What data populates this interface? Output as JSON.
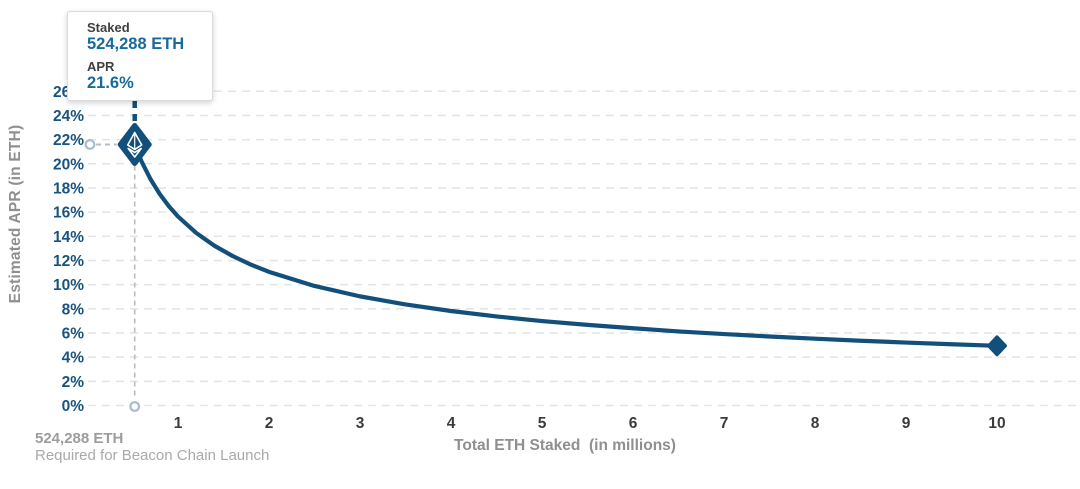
{
  "tooltip": {
    "staked_label": "Staked",
    "staked_value": "524,288 ETH",
    "apr_label": "APR",
    "apr_value": "21.6%"
  },
  "axes": {
    "y_title": "Estimated APR (in ETH)",
    "x_title": "Total ETH Staked  (in millions)"
  },
  "annotation": {
    "line1": "524,288 ETH",
    "line2": "Required for Beacon Chain Launch"
  },
  "colors": {
    "curve": "#124F7B",
    "y_tick": "#185380",
    "x_tick": "#3B3B3B",
    "axis_title": "#8F8F8F",
    "grid": "#E4E4E4",
    "tooltip_label": "#3F3F3F",
    "tooltip_value": "#176A9E",
    "annotation_bold": "#9C9C9C",
    "annotation_regular": "#A9A9A9",
    "connector_gray": "#B4BDC4",
    "ring": "#A8BDCC"
  },
  "chart_data": {
    "type": "line",
    "title": "",
    "xlabel": "Total ETH Staked  (in millions)",
    "ylabel": "Estimated APR (in ETH)",
    "xlim": [
      0,
      10.9
    ],
    "ylim": [
      0,
      26
    ],
    "x_ticks": [
      1,
      2,
      3,
      4,
      5,
      6,
      7,
      8,
      9,
      10
    ],
    "y_ticks": [
      0,
      2,
      4,
      6,
      8,
      10,
      12,
      14,
      16,
      18,
      20,
      22,
      24,
      26
    ],
    "y_tick_suffix": "%",
    "grid": "horizontal-dashed",
    "legend": "none",
    "series": [
      {
        "name": "Estimated APR",
        "x": [
          0.524288,
          0.6,
          0.7,
          0.8,
          0.9,
          1.0,
          1.2,
          1.4,
          1.6,
          1.8,
          2.0,
          2.5,
          3.0,
          3.5,
          4.0,
          4.5,
          5.0,
          5.5,
          6.0,
          6.5,
          7.0,
          7.5,
          8.0,
          8.5,
          9.0,
          9.5,
          10.0
        ],
        "y": [
          21.6,
          20.19,
          18.7,
          17.49,
          16.49,
          15.64,
          14.28,
          13.22,
          12.37,
          11.66,
          11.06,
          9.89,
          9.03,
          8.36,
          7.82,
          7.37,
          6.99,
          6.67,
          6.39,
          6.13,
          5.91,
          5.71,
          5.53,
          5.36,
          5.21,
          5.07,
          4.94
        ]
      }
    ],
    "highlight_point": {
      "x": 0.524288,
      "y": 21.6,
      "marker": "eth-logo-diamond"
    },
    "end_point": {
      "x": 10.0,
      "y": 4.94,
      "marker": "diamond"
    }
  }
}
